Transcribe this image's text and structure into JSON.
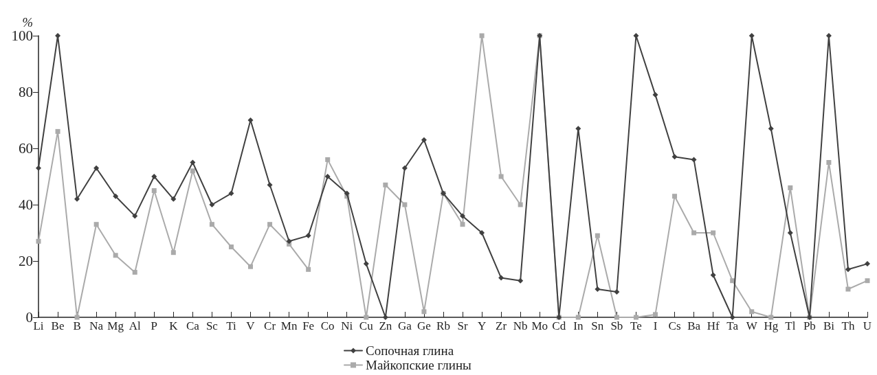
{
  "chart_data": {
    "type": "line",
    "ylabel": "%",
    "categories": [
      "Li",
      "Be",
      "B",
      "Na",
      "Mg",
      "Al",
      "P",
      "K",
      "Ca",
      "Sc",
      "Ti",
      "V",
      "Cr",
      "Mn",
      "Fe",
      "Co",
      "Ni",
      "Cu",
      "Zn",
      "Ga",
      "Ge",
      "Rb",
      "Sr",
      "Y",
      "Zr",
      "Nb",
      "Mo",
      "Cd",
      "In",
      "Sn",
      "Sb",
      "Te",
      "I",
      "Cs",
      "Ba",
      "Hf",
      "Ta",
      "W",
      "Hg",
      "Tl",
      "Pb",
      "Bi",
      "Th",
      "U"
    ],
    "series": [
      {
        "name": "Сопочная глина",
        "color": "#404040",
        "marker": "diamond",
        "values": [
          53,
          100,
          42,
          53,
          43,
          36,
          50,
          42,
          55,
          40,
          44,
          70,
          47,
          27,
          29,
          50,
          44,
          19,
          0,
          53,
          63,
          44,
          36,
          30,
          14,
          13,
          100,
          0,
          67,
          10,
          9,
          100,
          79,
          57,
          56,
          15,
          0,
          100,
          67,
          30,
          0,
          100,
          17,
          19
        ]
      },
      {
        "name": "Майкопские глины",
        "color": "#aaaaaa",
        "marker": "square",
        "values": [
          27,
          66,
          0,
          33,
          22,
          16,
          45,
          23,
          52,
          33,
          25,
          18,
          33,
          26,
          17,
          56,
          43,
          0,
          47,
          40,
          2,
          44,
          33,
          100,
          50,
          40,
          100,
          0,
          0,
          29,
          0,
          0,
          1,
          43,
          30,
          30,
          13,
          2,
          0,
          46,
          0,
          55,
          10,
          13
        ]
      }
    ],
    "ylim": [
      0,
      100
    ],
    "yticks": [
      0,
      20,
      40,
      60,
      80,
      100
    ],
    "grid": false,
    "legend": "bottom",
    "line_style": "solid"
  }
}
